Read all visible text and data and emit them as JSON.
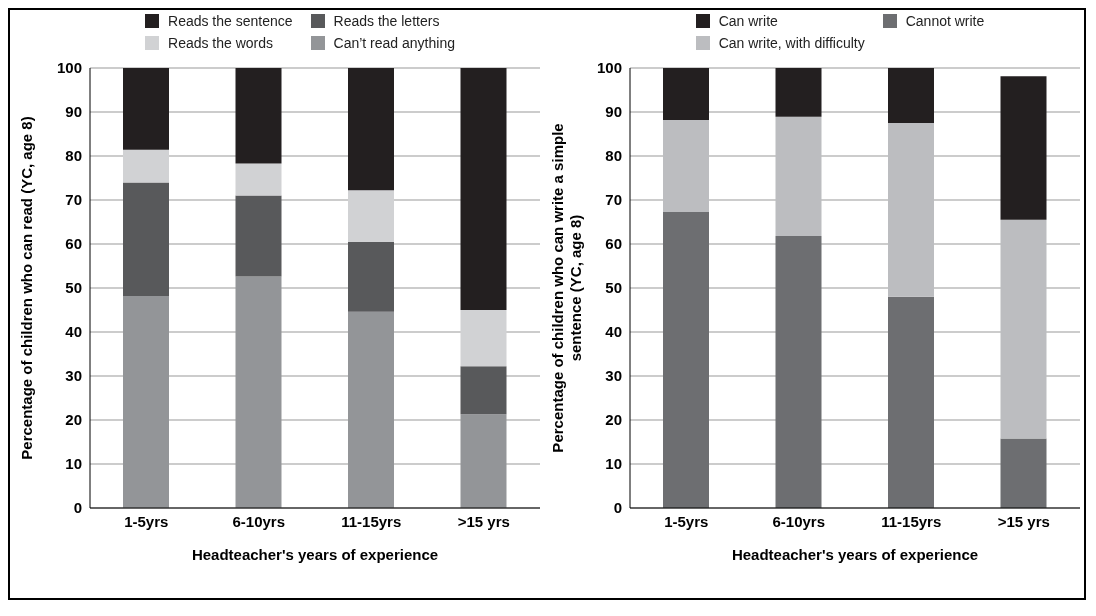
{
  "chart_data": [
    {
      "type": "bar",
      "stacked": true,
      "categories": [
        "1-5yrs",
        "6-10yrs",
        "11-15yrs",
        ">15 yrs"
      ],
      "xlabel": "Headteacher's years of experience",
      "ylabel": "Percentage of children who can read (YC, age 8)",
      "ylim": [
        0,
        100
      ],
      "yticks": [
        0,
        10,
        20,
        30,
        40,
        50,
        60,
        70,
        80,
        90,
        100
      ],
      "grid": "y",
      "legend": "top",
      "series": [
        {
          "name": "Can’t read anything",
          "color": "#939598",
          "values": [
            48.2,
            52.6,
            44.6,
            21.3
          ]
        },
        {
          "name": "Reads the letters",
          "color": "#58595b",
          "values": [
            25.8,
            18.4,
            15.9,
            10.9
          ]
        },
        {
          "name": "Reads the words",
          "color": "#d1d2d4",
          "values": [
            7.4,
            7.3,
            11.7,
            12.8
          ]
        },
        {
          "name": "Reads the sentence",
          "color": "#231f20",
          "values": [
            18.6,
            21.7,
            27.8,
            55.0
          ]
        }
      ]
    },
    {
      "type": "bar",
      "stacked": true,
      "categories": [
        "1-5yrs",
        "6-10yrs",
        "11-15yrs",
        ">15 yrs"
      ],
      "xlabel": "Headteacher's years of experience",
      "ylabel": "Percentage of children who can write a simple sentence (YC, age 8)",
      "ylim": [
        0,
        100
      ],
      "yticks": [
        0,
        10,
        20,
        30,
        40,
        50,
        60,
        70,
        80,
        90,
        100
      ],
      "grid": "y",
      "legend": "top",
      "series": [
        {
          "name": "Cannot write",
          "color": "#6d6e71",
          "values": [
            67.3,
            61.8,
            48.0,
            15.8
          ]
        },
        {
          "name": "Can write, with difficulty",
          "color": "#bcbdc0",
          "values": [
            20.9,
            27.1,
            39.5,
            49.7
          ]
        },
        {
          "name": "Can write",
          "color": "#231f20",
          "values": [
            11.8,
            11.1,
            12.5,
            32.6
          ]
        }
      ]
    }
  ]
}
